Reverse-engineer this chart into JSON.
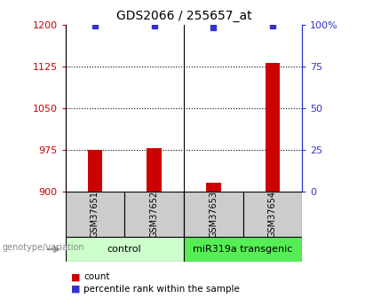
{
  "title": "GDS2066 / 255657_at",
  "samples": [
    "GSM37651",
    "GSM37652",
    "GSM37653",
    "GSM37654"
  ],
  "bar_values": [
    975,
    977,
    916,
    1130
  ],
  "bar_baseline": 900,
  "bar_color": "#cc0000",
  "dot_values": [
    99,
    99,
    98,
    99
  ],
  "dot_color": "#3333cc",
  "ylim_left": [
    900,
    1200
  ],
  "ylim_right": [
    0,
    100
  ],
  "yticks_left": [
    900,
    975,
    1050,
    1125,
    1200
  ],
  "yticks_right": [
    0,
    25,
    50,
    75,
    100
  ],
  "ylabel_left_color": "#cc0000",
  "ylabel_right_color": "#3333cc",
  "groups": [
    {
      "label": "control",
      "samples": [
        0,
        1
      ],
      "color": "#ccffcc"
    },
    {
      "label": "miR319a transgenic",
      "samples": [
        2,
        3
      ],
      "color": "#55ee55"
    }
  ],
  "genotype_label": "genotype/variation",
  "legend_items": [
    {
      "label": "count",
      "color": "#cc0000"
    },
    {
      "label": "percentile rank within the sample",
      "color": "#3333cc"
    }
  ],
  "grid_color": "#000000",
  "background_color": "#ffffff",
  "sample_bg": "#cccccc",
  "bar_width": 0.25
}
